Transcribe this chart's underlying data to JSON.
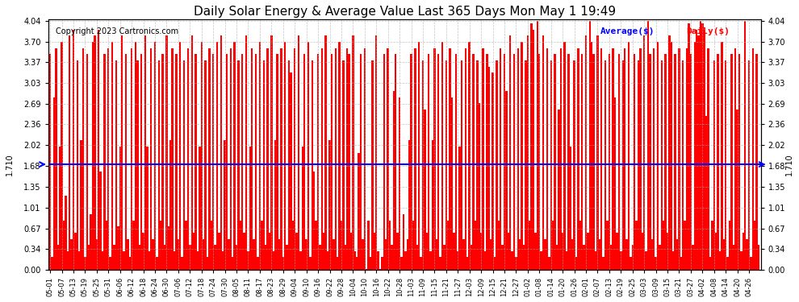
{
  "title": "Daily Solar Energy & Average Value Last 365 Days Mon May 1 19:49",
  "copyright": "Copyright 2023 Cartronics.com",
  "legend_average": "Average($)",
  "legend_daily": "Daily($)",
  "average_value": 1.71,
  "bar_color": "#ff0000",
  "average_color": "#0000ff",
  "yticks": [
    0.0,
    0.34,
    0.67,
    1.01,
    1.35,
    1.68,
    2.02,
    2.36,
    2.69,
    3.03,
    3.37,
    3.7,
    4.04
  ],
  "ymax": 4.04,
  "ymin": 0.0,
  "background_color": "#ffffff",
  "grid_color": "#aaaaaa",
  "x_labels": [
    "05-01",
    "05-07",
    "05-13",
    "05-19",
    "05-25",
    "05-31",
    "06-06",
    "06-12",
    "06-18",
    "06-24",
    "06-30",
    "07-06",
    "07-12",
    "07-18",
    "07-24",
    "07-30",
    "08-05",
    "08-11",
    "08-17",
    "08-23",
    "08-29",
    "09-04",
    "09-10",
    "09-16",
    "09-22",
    "09-28",
    "10-04",
    "10-10",
    "10-16",
    "10-22",
    "10-28",
    "11-03",
    "11-09",
    "11-15",
    "11-21",
    "11-27",
    "12-03",
    "12-09",
    "12-15",
    "12-21",
    "12-27",
    "01-02",
    "01-08",
    "01-14",
    "01-20",
    "01-26",
    "02-01",
    "02-07",
    "02-13",
    "02-19",
    "02-25",
    "03-03",
    "03-09",
    "03-15",
    "03-21",
    "03-27",
    "04-02",
    "04-08",
    "04-14",
    "04-20",
    "04-26"
  ],
  "values": [
    3.5,
    0.2,
    2.8,
    3.6,
    0.4,
    2.0,
    3.7,
    0.8,
    1.2,
    0.3,
    3.8,
    0.5,
    3.9,
    0.6,
    3.4,
    0.3,
    2.1,
    3.6,
    0.2,
    3.5,
    0.4,
    0.9,
    3.7,
    3.8,
    0.5,
    3.9,
    1.6,
    0.3,
    3.5,
    0.8,
    3.6,
    0.2,
    3.7,
    0.4,
    3.4,
    0.7,
    2.0,
    3.8,
    0.3,
    3.5,
    0.5,
    0.2,
    3.6,
    0.8,
    3.7,
    3.4,
    0.4,
    3.5,
    0.6,
    3.8,
    2.0,
    0.3,
    3.6,
    0.5,
    3.7,
    0.2,
    3.4,
    0.8,
    3.5,
    0.4,
    3.8,
    0.7,
    2.1,
    3.6,
    0.3,
    3.5,
    0.5,
    3.7,
    0.2,
    3.4,
    0.8,
    3.6,
    0.4,
    3.8,
    0.6,
    3.5,
    0.3,
    2.0,
    3.7,
    0.5,
    3.4,
    0.2,
    3.6,
    0.8,
    3.5,
    0.4,
    3.7,
    0.6,
    3.8,
    0.3,
    2.1,
    3.5,
    0.5,
    3.6,
    0.2,
    3.7,
    0.4,
    3.4,
    0.8,
    3.5,
    0.6,
    3.8,
    0.3,
    2.0,
    3.6,
    0.5,
    3.5,
    0.2,
    3.7,
    0.8,
    3.4,
    0.4,
    3.6,
    0.6,
    3.8,
    0.3,
    2.1,
    3.5,
    0.5,
    3.6,
    0.2,
    3.7,
    0.4,
    3.4,
    3.2,
    0.8,
    3.6,
    0.6,
    3.8,
    0.3,
    2.0,
    3.5,
    0.5,
    3.7,
    0.2,
    3.4,
    1.6,
    0.8,
    3.5,
    0.4,
    3.6,
    0.6,
    3.8,
    0.3,
    2.1,
    3.5,
    0.5,
    3.6,
    0.2,
    3.7,
    0.8,
    3.4,
    0.4,
    3.6,
    3.5,
    0.6,
    3.8,
    0.3,
    0.2,
    1.9,
    3.5,
    0.5,
    3.6,
    0.01,
    0.8,
    0.2,
    3.4,
    0.6,
    3.8,
    0.3,
    0.01,
    0.2,
    3.5,
    0.5,
    3.6,
    0.8,
    0.4,
    2.9,
    3.5,
    0.6,
    2.8,
    0.2,
    0.9,
    0.3,
    0.5,
    2.1,
    3.5,
    0.8,
    3.6,
    0.4,
    3.7,
    0.2,
    3.4,
    2.6,
    0.6,
    3.5,
    0.3,
    2.1,
    3.6,
    0.5,
    3.5,
    0.2,
    3.7,
    0.4,
    3.4,
    0.8,
    3.6,
    2.8,
    0.6,
    3.5,
    0.3,
    2.0,
    3.4,
    0.5,
    3.6,
    0.2,
    3.7,
    0.4,
    3.5,
    0.8,
    3.4,
    2.7,
    0.6,
    3.6,
    0.3,
    3.5,
    3.3,
    0.5,
    3.2,
    0.2,
    3.4,
    0.8,
    3.6,
    0.4,
    3.5,
    2.9,
    0.6,
    3.8,
    0.3,
    3.5,
    0.2,
    3.6,
    0.5,
    3.7,
    0.4,
    3.4,
    3.8,
    0.8,
    4.0,
    3.9,
    0.6,
    4.04,
    3.5,
    0.3,
    3.8,
    0.5,
    3.6,
    0.2,
    3.4,
    0.8,
    3.5,
    0.4,
    2.6,
    3.6,
    0.6,
    3.7,
    0.3,
    3.5,
    2.0,
    0.5,
    3.4,
    0.2,
    3.6,
    0.8,
    3.5,
    0.4,
    3.8,
    0.6,
    4.04,
    3.7,
    3.5,
    0.3,
    3.8,
    0.5,
    3.6,
    0.2,
    3.4,
    0.8,
    3.5,
    0.4,
    3.6,
    2.8,
    0.6,
    3.5,
    0.3,
    3.4,
    3.6,
    0.5,
    3.7,
    0.2,
    0.4,
    3.5,
    0.8,
    3.4,
    3.6,
    0.6,
    3.8,
    0.3,
    4.04,
    3.5,
    0.5,
    3.6,
    0.2,
    3.7,
    0.4,
    3.4,
    0.8,
    3.5,
    0.6,
    3.8,
    3.7,
    0.3,
    3.5,
    0.5,
    3.6,
    0.2,
    3.4,
    0.8,
    3.6,
    4.0,
    3.5,
    0.4,
    3.7,
    3.9,
    3.8,
    4.04,
    4.0,
    3.9,
    2.5,
    3.6,
    0.2,
    0.8,
    3.4,
    0.6,
    3.5,
    0.3,
    3.7,
    0.5,
    3.4,
    0.2,
    0.8,
    3.5,
    0.4,
    3.6,
    2.6,
    3.5,
    0.3,
    0.6,
    4.04,
    0.5,
    3.4,
    0.2,
    3.6,
    0.8,
    3.5,
    0.4
  ]
}
